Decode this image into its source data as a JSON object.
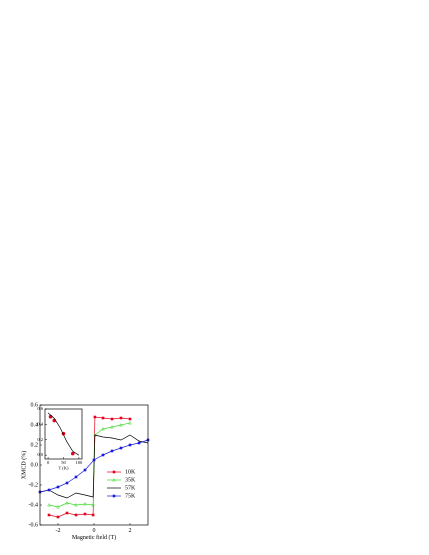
{
  "chart_data": [
    {
      "type": "line",
      "x_label": "Magnetic field  (T)",
      "y_label": "XMCD  (%)",
      "xlim": [
        -3,
        3
      ],
      "ylim": [
        -0.6,
        0.6
      ],
      "xticks": [
        -2,
        0,
        2
      ],
      "yticks": [
        -0.6,
        -0.4,
        -0.2,
        {
          "value": 0,
          "label": "0.0"
        },
        0.2,
        0.4,
        0.6
      ],
      "series": [
        {
          "name": "10K",
          "color": "#e8001c",
          "marker": "square",
          "x": [
            -2.5,
            -2,
            -1.5,
            -1,
            -0.5,
            -0.05,
            0.05,
            0.5,
            1,
            1.5,
            2
          ],
          "values": [
            -0.5,
            -0.52,
            -0.48,
            -0.5,
            -0.49,
            -0.5,
            0.48,
            0.47,
            0.46,
            0.47,
            0.46
          ]
        },
        {
          "name": "35K",
          "color": "#3ddc2c",
          "marker": "triangle",
          "x": [
            -2.5,
            -2,
            -1.5,
            -1,
            -0.5,
            -0.05,
            0.05,
            0.5,
            1,
            1.5,
            2
          ],
          "values": [
            -0.4,
            -0.42,
            -0.38,
            -0.4,
            -0.39,
            -0.4,
            0.3,
            0.36,
            0.38,
            0.4,
            0.42
          ]
        },
        {
          "name": "57K",
          "color": "#000000",
          "marker": "none",
          "x": [
            -3,
            -2.5,
            -2,
            -1.5,
            -1,
            -0.5,
            -0.05,
            0.05,
            0.5,
            1,
            1.5,
            2,
            2.5,
            3
          ],
          "values": [
            -0.27,
            -0.25,
            -0.3,
            -0.33,
            -0.28,
            -0.3,
            -0.32,
            0.3,
            0.28,
            0.27,
            0.25,
            0.3,
            0.24,
            0.22
          ]
        },
        {
          "name": "75K",
          "color": "#1a1adc",
          "marker": "square",
          "x": [
            -3,
            -2.5,
            -2,
            -1.5,
            -1,
            -0.5,
            0,
            0.5,
            1,
            1.5,
            2,
            2.5,
            3
          ],
          "values": [
            -0.27,
            -0.25,
            -0.22,
            -0.18,
            -0.12,
            -0.05,
            0.05,
            0.1,
            0.14,
            0.17,
            0.2,
            0.22,
            0.25
          ]
        }
      ]
    },
    {
      "type": "line",
      "x_label": "T  (K)",
      "xlim": [
        -10,
        110
      ],
      "ylim": [
        -0.05,
        0.6
      ],
      "xticks": [
        0,
        50,
        100
      ],
      "yticks": [
        {
          "value": 0,
          "label": "0.0"
        },
        0.2,
        0.4,
        0.6
      ],
      "series": [
        {
          "color": "#e8001c",
          "marker": "circle",
          "linestyle": "none",
          "x": [
            8,
            20,
            50,
            80
          ],
          "values": [
            0.5,
            0.45,
            0.28,
            0.02
          ]
        },
        {
          "color": "#000000",
          "marker": "none",
          "x": [
            0,
            20,
            40,
            60,
            80,
            100
          ],
          "values": [
            0.55,
            0.48,
            0.35,
            0.18,
            0.05,
            0
          ]
        }
      ]
    }
  ]
}
